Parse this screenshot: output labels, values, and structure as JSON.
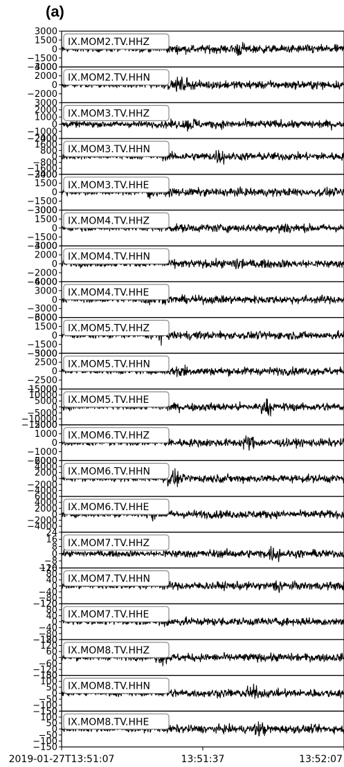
{
  "panel_label": "(a)",
  "colors": {
    "trace": "#000000",
    "frame": "#000000",
    "label_bg": "#ffffff",
    "label_border": "#888888"
  },
  "chart_data": {
    "type": "line",
    "title": "",
    "xlabel": "",
    "xlim": [
      "2019-01-27T13:51:07",
      "2019-01-27T13:52:07"
    ],
    "x_ticks": [
      {
        "value": "2019-01-27T13:51:07",
        "label": "2019-01-27T13:51:07"
      },
      {
        "value": "2019-01-27T13:51:37",
        "label": "13:51:37"
      },
      {
        "value": "2019-01-27T13:52:07",
        "label": "13:52:07"
      }
    ],
    "grid": false,
    "panels": [
      {
        "station": "IX.MOM2.TV.HHZ",
        "ylim": [
          -3000,
          3000
        ],
        "yticks": [
          "3000",
          "1500",
          "0",
          "−1500",
          "−3000"
        ]
      },
      {
        "station": "IX.MOM2.TV.HHN",
        "ylim": [
          -4000,
          4000
        ],
        "yticks": [
          "4000",
          "2000",
          "0",
          "−2000"
        ]
      },
      {
        "station": "IX.MOM3.TV.HHZ",
        "ylim": [
          -2000,
          3000
        ],
        "yticks": [
          "3000",
          "2000",
          "1000",
          "0",
          "−1000",
          "−2000"
        ]
      },
      {
        "station": "IX.MOM3.TV.HHN",
        "ylim": [
          -2400,
          2400
        ],
        "yticks": [
          "2400",
          "1600",
          "800",
          "0",
          "−800",
          "−1600",
          "−2400"
        ]
      },
      {
        "station": "IX.MOM3.TV.HHE",
        "ylim": [
          -3000,
          3000
        ],
        "yticks": [
          "3000",
          "1500",
          "0",
          "−1500",
          "−3000"
        ]
      },
      {
        "station": "IX.MOM4.TV.HHZ",
        "ylim": [
          -3000,
          3000
        ],
        "yticks": [
          "3000",
          "1500",
          "0",
          "−1500",
          "−3000"
        ]
      },
      {
        "station": "IX.MOM4.TV.HHN",
        "ylim": [
          -4000,
          4000
        ],
        "yticks": [
          "4000",
          "2000",
          "0",
          "−2000",
          "−4000"
        ]
      },
      {
        "station": "IX.MOM4.TV.HHE",
        "ylim": [
          -6000,
          6000
        ],
        "yticks": [
          "6000",
          "3000",
          "0",
          "−3000",
          "−6000"
        ]
      },
      {
        "station": "IX.MOM5.TV.HHZ",
        "ylim": [
          -3000,
          3000
        ],
        "yticks": [
          "3000",
          "1500",
          "0",
          "−1500",
          "−3000"
        ]
      },
      {
        "station": "IX.MOM5.TV.HHN",
        "ylim": [
          -5000,
          5000
        ],
        "yticks": [
          "5000",
          "2500",
          "0",
          "−2500",
          "−5000"
        ]
      },
      {
        "station": "IX.MOM5.TV.HHE",
        "ylim": [
          -15000,
          15000
        ],
        "yticks": [
          "15000",
          "10000",
          "5000",
          "0",
          "−5000",
          "−10000",
          "−15000"
        ]
      },
      {
        "station": "IX.MOM6.TV.HHZ",
        "ylim": [
          -2000,
          2000
        ],
        "yticks": [
          "2000",
          "1000",
          "0",
          "−1000",
          "−2000"
        ]
      },
      {
        "station": "IX.MOM6.TV.HHN",
        "ylim": [
          -6000,
          6000
        ],
        "yticks": [
          "6000",
          "4000",
          "2000",
          "0",
          "−2000",
          "−4000"
        ]
      },
      {
        "station": "IX.MOM6.TV.HHE",
        "ylim": [
          -6000,
          6000
        ],
        "yticks": [
          "6000",
          "4000",
          "2000",
          "0",
          "−2000",
          "−4000"
        ]
      },
      {
        "station": "IX.MOM7.TV.HHZ",
        "ylim": [
          -16,
          24
        ],
        "yticks": [
          "24",
          "16",
          "8",
          "0",
          "−8",
          "−16"
        ]
      },
      {
        "station": "IX.MOM7.TV.HHN",
        "ylim": [
          -120,
          120
        ],
        "yticks": [
          "120",
          "80",
          "40",
          "0",
          "−40",
          "−80",
          "−120"
        ]
      },
      {
        "station": "IX.MOM7.TV.HHE",
        "ylim": [
          -120,
          120
        ],
        "yticks": [
          "120",
          "80",
          "40",
          "0",
          "−40",
          "−80",
          "−120"
        ]
      },
      {
        "station": "IX.MOM8.TV.HHZ",
        "ylim": [
          -180,
          180
        ],
        "yticks": [
          "180",
          "120",
          "60",
          "0",
          "−60",
          "−120",
          "−180"
        ]
      },
      {
        "station": "IX.MOM8.TV.HHN",
        "ylim": [
          -150,
          150
        ],
        "yticks": [
          "150",
          "100",
          "50",
          "0",
          "−50",
          "−100",
          "−150"
        ]
      },
      {
        "station": "IX.MOM8.TV.HHE",
        "ylim": [
          -150,
          150
        ],
        "yticks": [
          "150",
          "100",
          "50",
          "0",
          "−50",
          "−100",
          "−150"
        ]
      }
    ]
  }
}
